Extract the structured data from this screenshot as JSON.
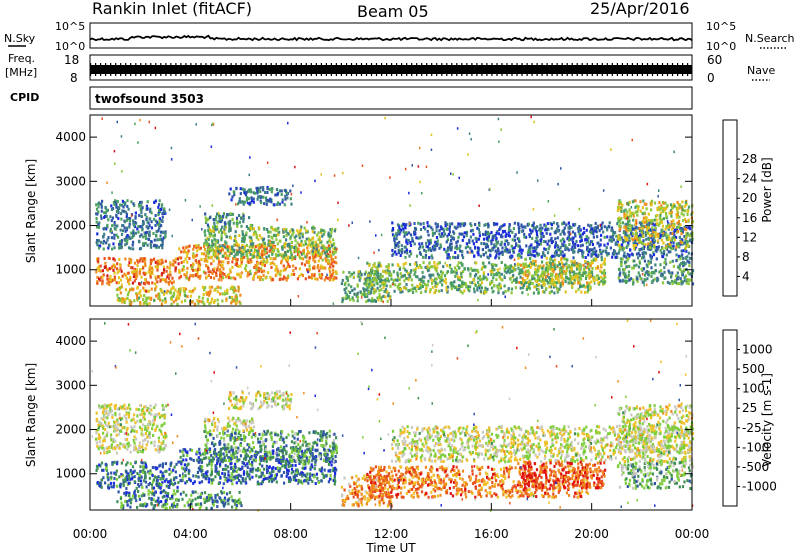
{
  "header": {
    "title": "Rankin Inlet (fitACF)",
    "beam": "Beam 05",
    "date": "25/Apr/2016"
  },
  "noise_panel": {
    "left_label": "N.Sky",
    "right_label": "N.Search",
    "left_ticks": [
      "10^5",
      "10^0"
    ],
    "right_ticks": [
      "10^5",
      "10^0"
    ]
  },
  "freq_panel": {
    "left_label_1": "Freq.",
    "left_label_2": "[MHz]",
    "right_label": "Nave",
    "left_ticks": [
      "18",
      "8"
    ],
    "right_ticks": [
      "60",
      "0"
    ]
  },
  "cpid": {
    "label": "CPID",
    "program": "twofsound 3503"
  },
  "chart_data": [
    {
      "type": "heatmap",
      "parameter": "Power",
      "ylabel": "Slant Range [km]",
      "ylim": [
        180,
        4500
      ],
      "yticks": [
        1000,
        2000,
        3000,
        4000
      ],
      "xlim_hours": [
        0,
        24
      ],
      "colorbar": {
        "label": "Power [dB]",
        "ticks": [
          "4",
          "8",
          "12",
          "16",
          "20",
          "24",
          "28"
        ],
        "colors": [
          "#1a2bdc",
          "#2e55a8",
          "#3f7f86",
          "#4aa061",
          "#8cc63a",
          "#e3c21c",
          "#f08a1e",
          "#e8501f",
          "#d2161c"
        ]
      },
      "bands": [
        {
          "t0": 0.2,
          "t1": 3.5,
          "r0": 700,
          "r1": 1300,
          "level": 0.75
        },
        {
          "t0": 0.2,
          "t1": 3.0,
          "r0": 1500,
          "r1": 2600,
          "level": 0.25
        },
        {
          "t0": 3.5,
          "t1": 9.8,
          "r0": 800,
          "r1": 1600,
          "level": 0.7
        },
        {
          "t0": 4.5,
          "t1": 9.8,
          "r0": 1300,
          "r1": 2000,
          "level": 0.45
        },
        {
          "t0": 4.5,
          "t1": 6.5,
          "r0": 2000,
          "r1": 2300,
          "level": 0.35
        },
        {
          "t0": 5.5,
          "t1": 8.0,
          "r0": 2500,
          "r1": 2900,
          "level": 0.25
        },
        {
          "t0": 1.0,
          "t1": 6.0,
          "r0": 250,
          "r1": 650,
          "level": 0.6
        },
        {
          "t0": 10.0,
          "t1": 12.0,
          "r0": 300,
          "r1": 1000,
          "level": 0.4
        },
        {
          "t0": 11.0,
          "t1": 20.0,
          "r0": 500,
          "r1": 1200,
          "level": 0.45
        },
        {
          "t0": 12.0,
          "t1": 24.0,
          "r0": 1300,
          "r1": 2100,
          "level": 0.2
        },
        {
          "t0": 17.0,
          "t1": 20.5,
          "r0": 700,
          "r1": 1300,
          "level": 0.55
        },
        {
          "t0": 21.0,
          "t1": 24.0,
          "r0": 1500,
          "r1": 2600,
          "level": 0.55
        },
        {
          "t0": 21.0,
          "t1": 24.0,
          "r0": 700,
          "r1": 1300,
          "level": 0.35
        }
      ]
    },
    {
      "type": "heatmap",
      "parameter": "Velocity",
      "ylabel": "Slant Range [km]",
      "ylim": [
        180,
        4500
      ],
      "yticks": [
        1000,
        2000,
        3000,
        4000
      ],
      "xlim_hours": [
        0,
        24
      ],
      "xlabel": "Time UT",
      "xticks": [
        "00:00",
        "04:00",
        "08:00",
        "12:00",
        "16:00",
        "20:00",
        "00:00"
      ],
      "colorbar": {
        "label": "Velocity [m s-1]",
        "ticks": [
          "1000",
          "500",
          "100",
          "25",
          "-25",
          "-100",
          "-500",
          "-1000"
        ],
        "colors": [
          "#1a2bdc",
          "#2e55a8",
          "#3f8f55",
          "#7fcf3c",
          "#c9c9c1",
          "#f0c02a",
          "#f08a1e",
          "#e8501f",
          "#e01010"
        ]
      },
      "bands": [
        {
          "t0": 0.2,
          "t1": 3.5,
          "r0": 700,
          "r1": 1300,
          "level": 0.2
        },
        {
          "t0": 0.2,
          "t1": 3.0,
          "r0": 1500,
          "r1": 2600,
          "level": 0.5
        },
        {
          "t0": 3.5,
          "t1": 9.8,
          "r0": 800,
          "r1": 1600,
          "level": 0.2
        },
        {
          "t0": 4.5,
          "t1": 9.8,
          "r0": 1300,
          "r1": 2000,
          "level": 0.3
        },
        {
          "t0": 4.5,
          "t1": 6.5,
          "r0": 2000,
          "r1": 2300,
          "level": 0.5
        },
        {
          "t0": 5.5,
          "t1": 8.0,
          "r0": 2500,
          "r1": 2900,
          "level": 0.5
        },
        {
          "t0": 1.0,
          "t1": 6.0,
          "r0": 250,
          "r1": 650,
          "level": 0.25
        },
        {
          "t0": 10.0,
          "t1": 12.0,
          "r0": 300,
          "r1": 1000,
          "level": 0.7
        },
        {
          "t0": 11.0,
          "t1": 20.0,
          "r0": 500,
          "r1": 1200,
          "level": 0.75
        },
        {
          "t0": 12.0,
          "t1": 24.0,
          "r0": 1300,
          "r1": 2100,
          "level": 0.5
        },
        {
          "t0": 17.0,
          "t1": 20.5,
          "r0": 700,
          "r1": 1300,
          "level": 0.85
        },
        {
          "t0": 21.0,
          "t1": 24.0,
          "r0": 1500,
          "r1": 2600,
          "level": 0.5
        },
        {
          "t0": 21.0,
          "t1": 24.0,
          "r0": 700,
          "r1": 1300,
          "level": 0.35
        }
      ]
    }
  ]
}
